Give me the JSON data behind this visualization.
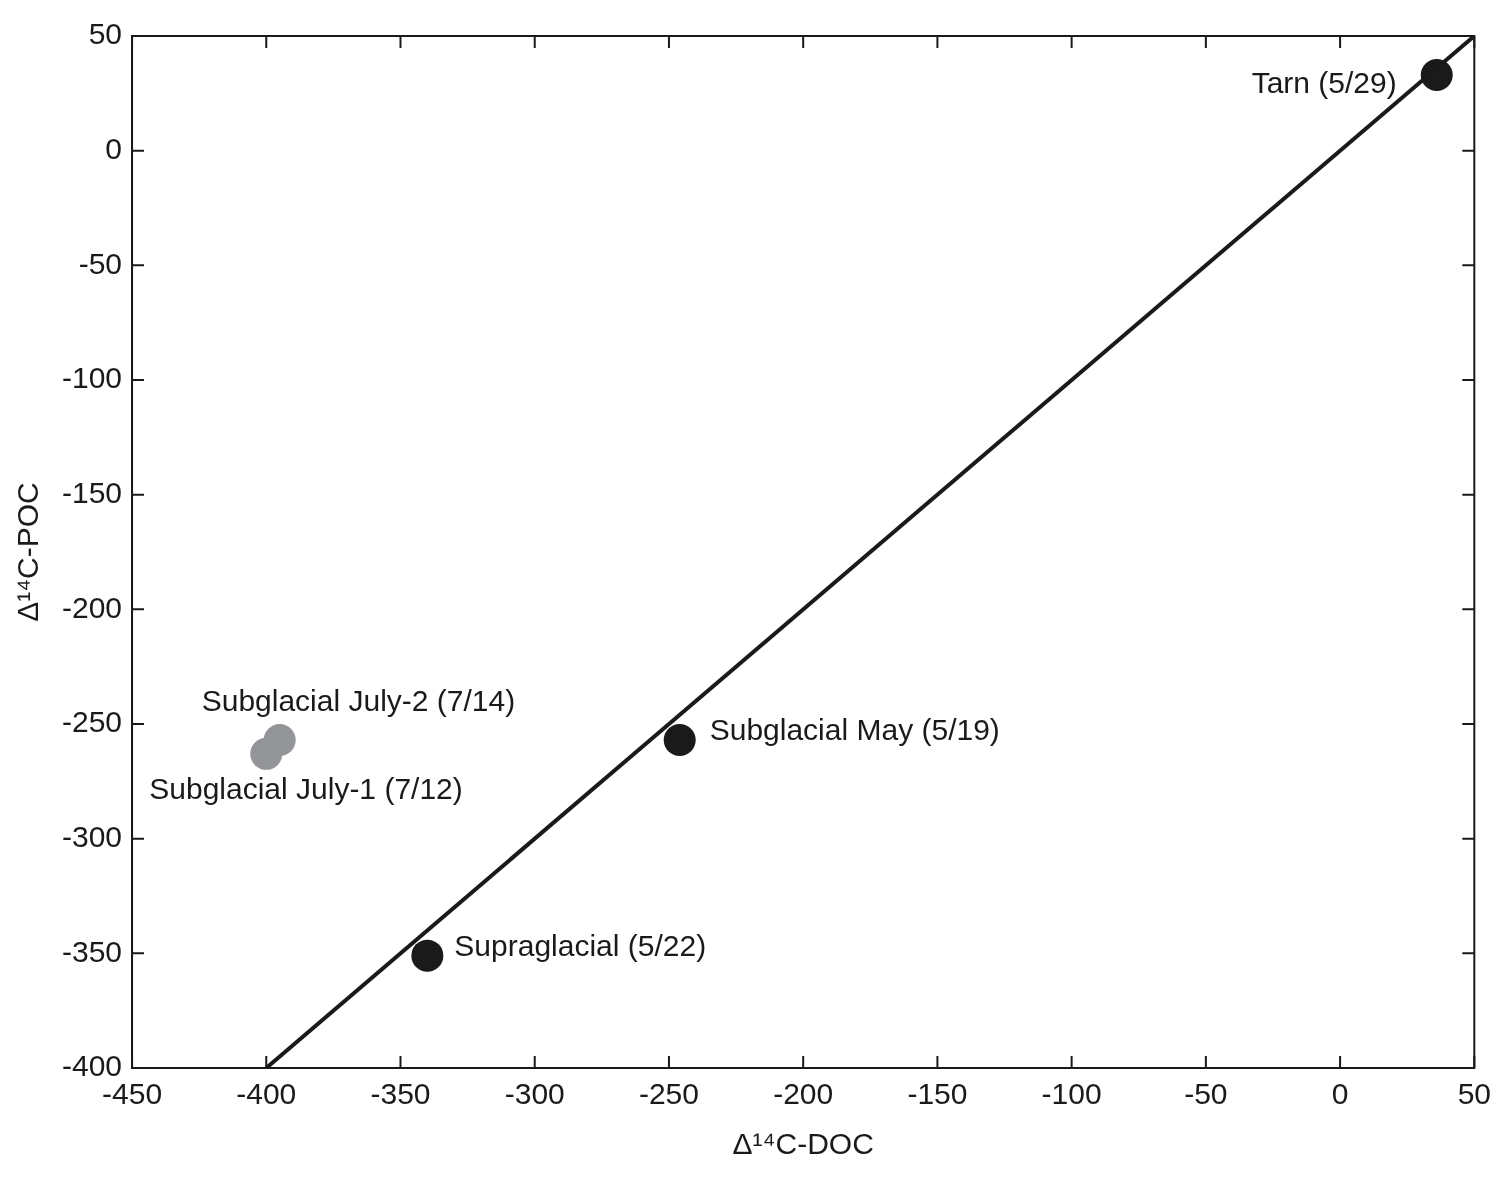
{
  "chart_data": {
    "type": "scatter",
    "xlabel": "Δ¹⁴C-DOC",
    "ylabel": "Δ¹⁴C-POC",
    "xlim": [
      -450,
      50
    ],
    "xticks": [
      -450,
      -400,
      -350,
      -300,
      -250,
      -200,
      -150,
      -100,
      -50,
      0,
      50
    ],
    "ylim": [
      -400,
      50
    ],
    "yticks": [
      -400,
      -350,
      -300,
      -250,
      -200,
      -150,
      -100,
      -50,
      0,
      50
    ],
    "grid": false,
    "legend": false,
    "marker": "circle",
    "series": [
      {
        "type": "line",
        "color": "#1a1a1a",
        "x": [
          -400,
          50
        ],
        "values": [
          -400,
          50
        ],
        "marker": "none",
        "line_style": "solid"
      },
      {
        "type": "scatter",
        "color": "#1a1a1a",
        "x": [
          36,
          -246,
          -340
        ],
        "values": [
          33,
          -257,
          -351
        ]
      },
      {
        "type": "scatter",
        "color": "#939598",
        "x": [
          -395,
          -400
        ],
        "values": [
          -257,
          -263
        ]
      }
    ],
    "annotations": [
      {
        "text": "Tarn (5/29)",
        "x": 36,
        "y": 33
      },
      {
        "text": "Subglacial May (5/19)",
        "x": -246,
        "y": -257
      },
      {
        "text": "Supraglacial (5/22)",
        "x": -340,
        "y": -351
      },
      {
        "text": "Subglacial July-2 (7/14)",
        "x": -395,
        "y": -257
      },
      {
        "text": "Subglacial July-1 (7/12)",
        "x": -400,
        "y": -263
      }
    ]
  }
}
